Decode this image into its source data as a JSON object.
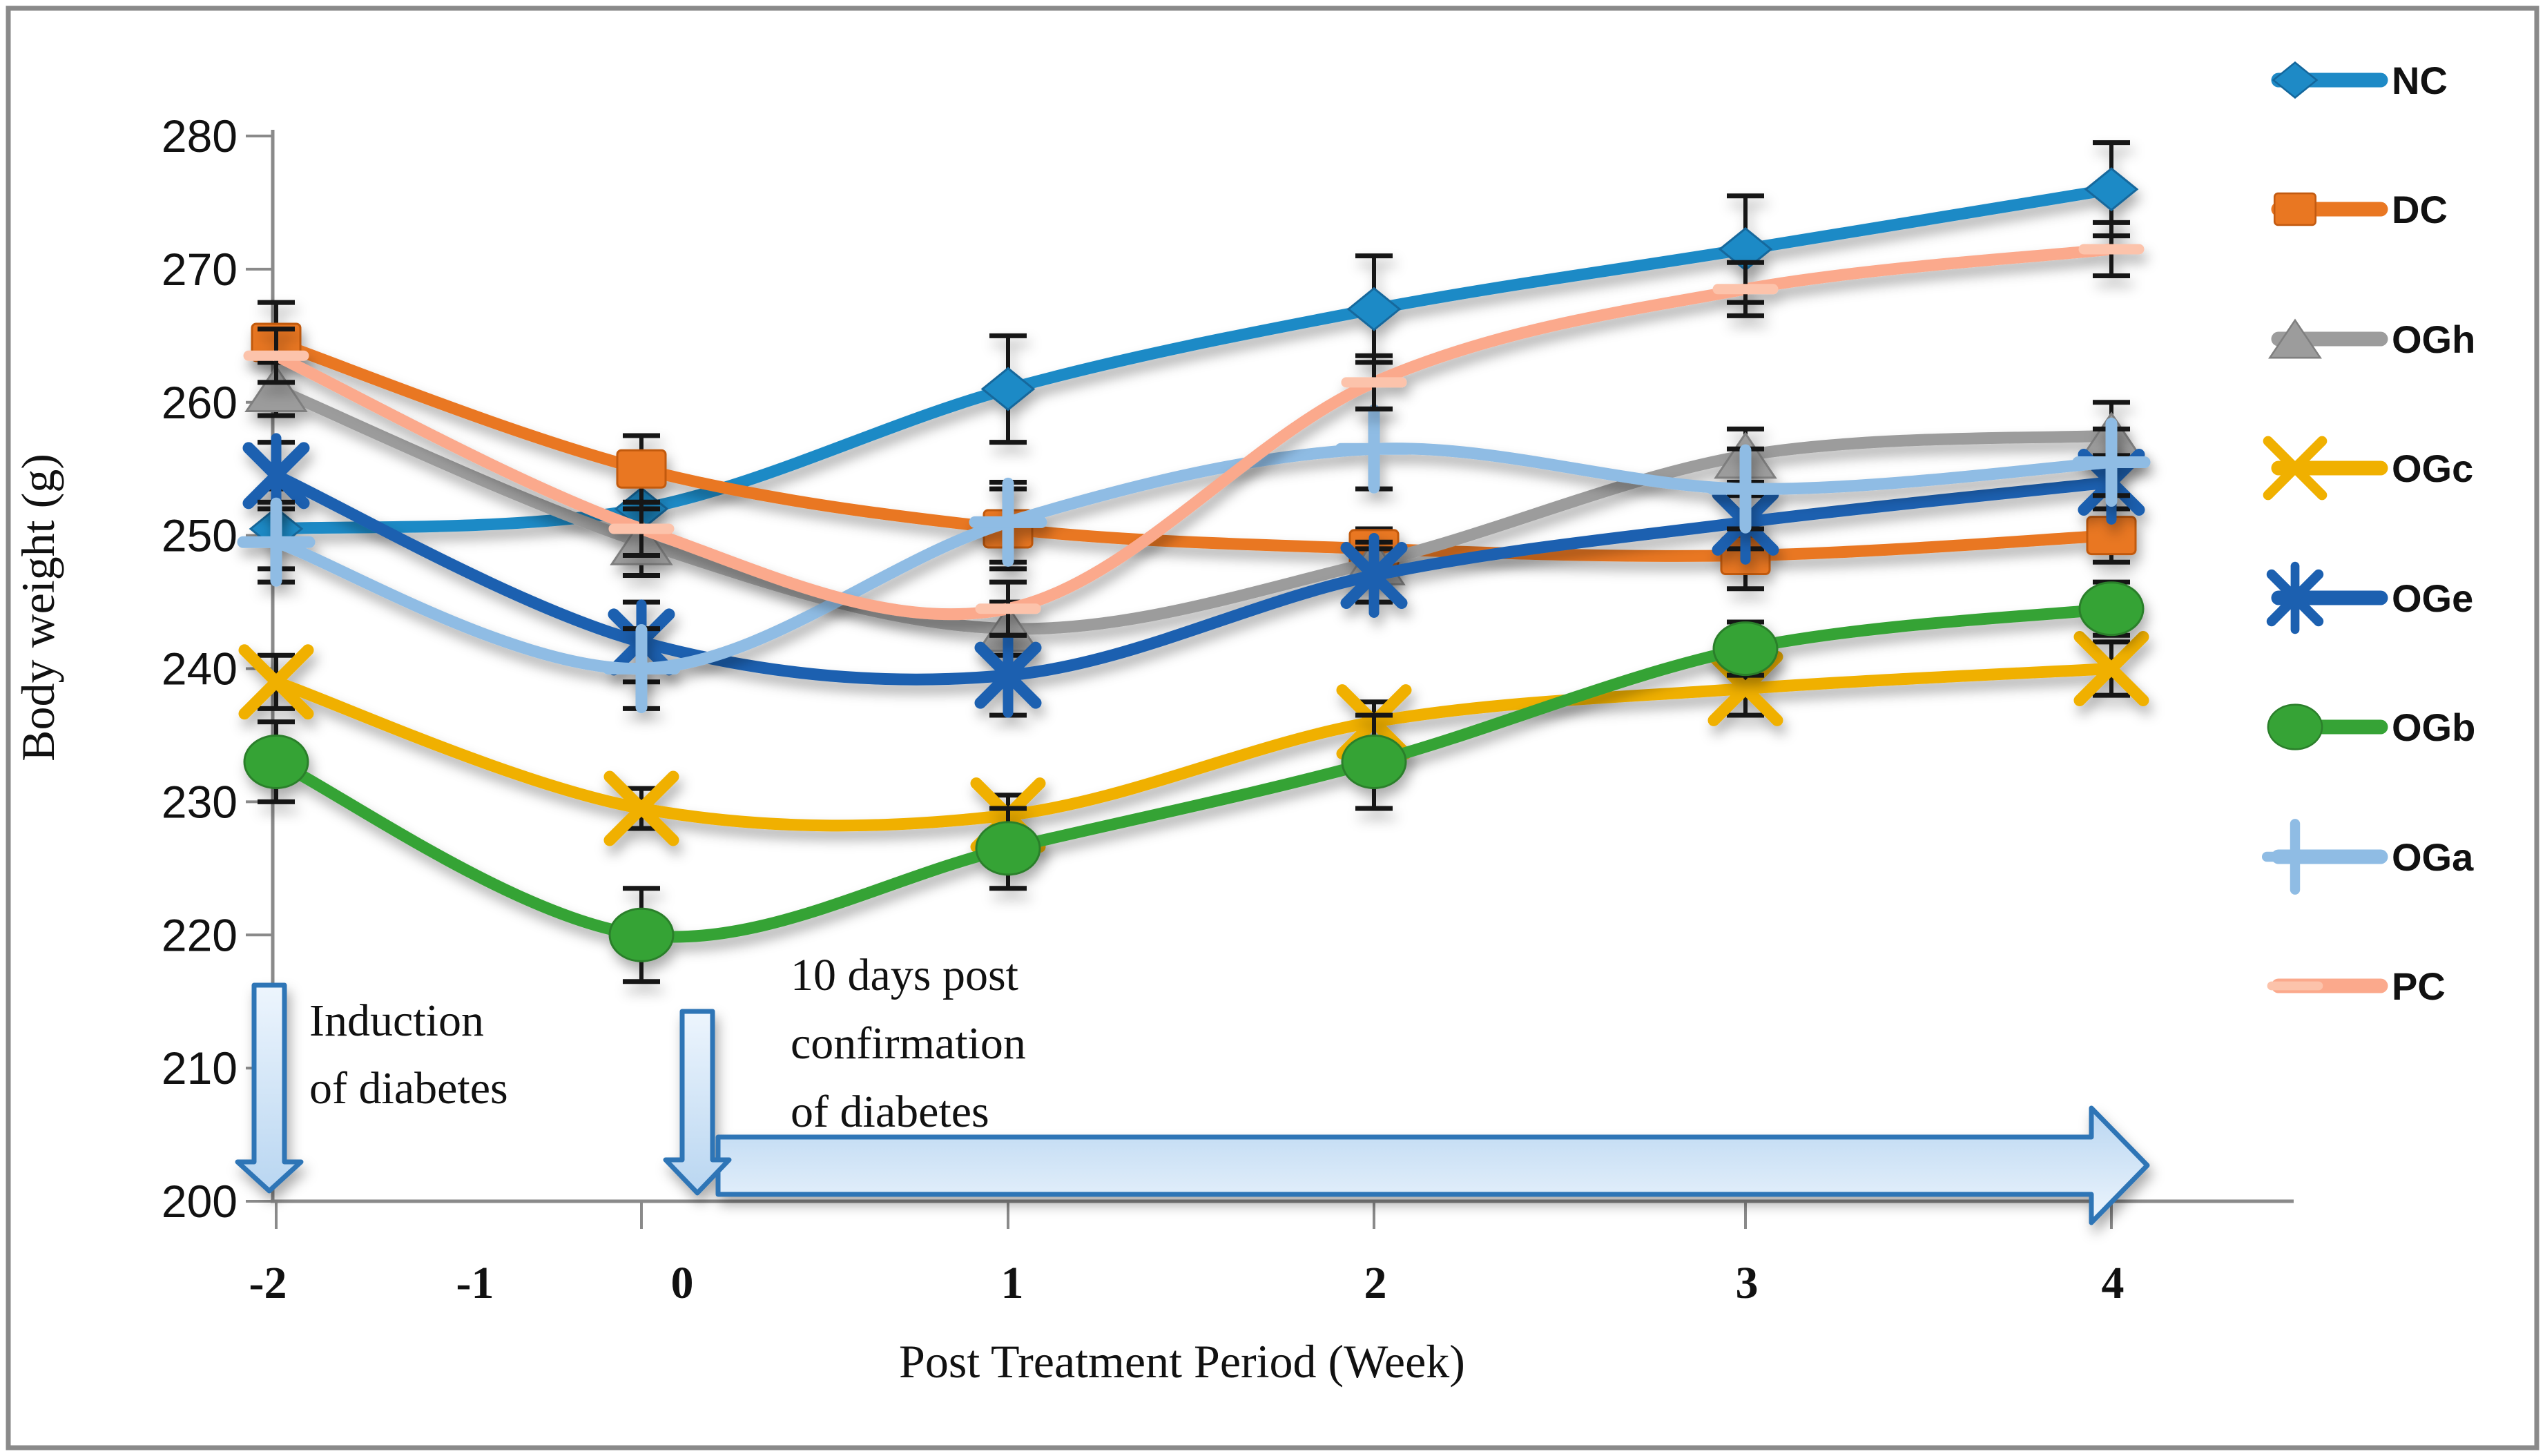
{
  "figure_type": "line-chart-figure",
  "frame_color": "#8A8A8A",
  "chart_data": {
    "type": "line",
    "title": "",
    "xlabel": "Post Treatment Period (Week)",
    "ylabel": "Body weight (g)",
    "x": [
      -2,
      0,
      1,
      2,
      3,
      4
    ],
    "x_tick_labels": [
      "-2",
      "-1",
      "0",
      "1",
      "2",
      "3",
      "4"
    ],
    "y_tick_labels": [
      "280",
      "270",
      "260",
      "250",
      "240",
      "230",
      "220",
      "210",
      "200"
    ],
    "ylim": [
      200,
      280
    ],
    "ytick_step": 10,
    "grid": false,
    "legend_position": "right",
    "marker_note": "smoothed lines with error bars; no data point at week -1",
    "series": [
      {
        "name": "NC",
        "color": "#1E8AC6",
        "edge": "#14679C",
        "marker": "diamond",
        "values": [
          250.5,
          252,
          261,
          267,
          271.5,
          276
        ],
        "err": [
          3,
          2,
          4,
          4,
          4,
          3.5
        ]
      },
      {
        "name": "DC",
        "color": "#E97722",
        "edge": "#C25A11",
        "marker": "square",
        "values": [
          264.5,
          255,
          250.5,
          249,
          248.5,
          250
        ],
        "err": [
          3,
          2.5,
          3,
          1.5,
          2.5,
          2
        ]
      },
      {
        "name": "OGh",
        "color": "#9C9C9C",
        "edge": "#7F7F7F",
        "marker": "triangle",
        "values": [
          261,
          249.5,
          243,
          248,
          256,
          257.5
        ],
        "err": [
          2,
          2.5,
          2,
          1.5,
          2,
          2.5
        ]
      },
      {
        "name": "OGc",
        "color": "#F0B000",
        "edge": "#C79200",
        "marker": "x",
        "values": [
          239,
          229.5,
          229,
          236,
          238.5,
          240
        ],
        "err": [
          2,
          1.5,
          1.5,
          1.5,
          2,
          2
        ]
      },
      {
        "name": "OGe",
        "color": "#1C60B0",
        "edge": "#154A8C",
        "marker": "asterisk",
        "values": [
          254.5,
          242,
          239.5,
          247,
          251,
          254
        ],
        "err": [
          2.5,
          3,
          3,
          2,
          2,
          2
        ]
      },
      {
        "name": "OGb",
        "color": "#36A336",
        "edge": "#2B7F2B",
        "marker": "circle",
        "values": [
          233,
          220,
          226.5,
          233,
          241.5,
          244.5
        ],
        "err": [
          3,
          3.5,
          3,
          3.5,
          2,
          2
        ]
      },
      {
        "name": "OGa",
        "color": "#8FBCE4",
        "edge": "#6FA3D4",
        "marker": "plus",
        "values": [
          249.5,
          240,
          251,
          256.5,
          253.5,
          255.5
        ],
        "err": [
          3,
          3,
          3,
          3,
          3,
          2.5
        ]
      },
      {
        "name": "PC",
        "color": "#FBA98C",
        "edge": "#E8926F",
        "marker": "dash",
        "marker_color": "#FCC3AB",
        "values": [
          263.5,
          250.5,
          244.5,
          261.5,
          268.5,
          271.5
        ],
        "err": [
          2,
          2,
          2,
          2,
          2,
          2
        ]
      }
    ]
  },
  "annotations": {
    "induction": {
      "lines": [
        "Induction",
        "of diabetes"
      ]
    },
    "confirmation": {
      "lines": [
        "10 days post",
        "confirmation",
        "of diabetes"
      ]
    }
  },
  "arrow_colors": {
    "border": "#2E75B6",
    "fill_light": "#EDF5FD",
    "fill_deep": "#B9D6F1"
  },
  "axis_color": "#8A8A8A",
  "error_bar_color": "#141414"
}
